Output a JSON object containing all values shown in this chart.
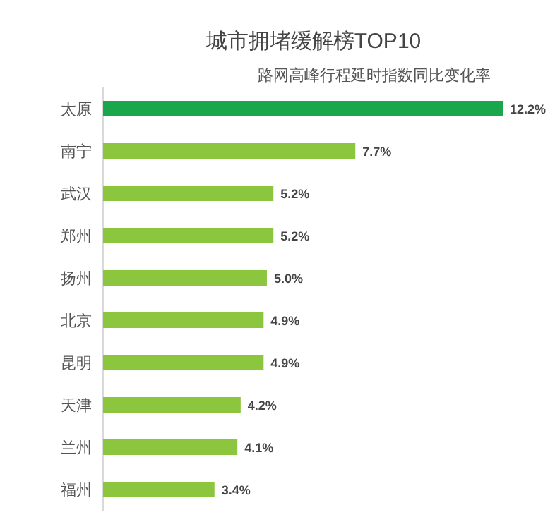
{
  "chart_data": {
    "type": "bar",
    "orientation": "horizontal",
    "title": "城市拥堵缓解榜TOP10",
    "subtitle": "路网高峰行程延时指数同比变化率",
    "categories": [
      "太原",
      "南宁",
      "武汉",
      "郑州",
      "扬州",
      "北京",
      "昆明",
      "天津",
      "兰州",
      "福州"
    ],
    "values": [
      12.2,
      7.7,
      5.2,
      5.2,
      5.0,
      4.9,
      4.9,
      4.2,
      4.1,
      3.4
    ],
    "value_labels": [
      "12.2%",
      "7.7%",
      "5.2%",
      "5.2%",
      "5.0%",
      "4.9%",
      "4.9%",
      "4.2%",
      "4.1%",
      "3.4%"
    ],
    "colors": [
      "#1aa64a",
      "#8cc63f",
      "#8cc63f",
      "#8cc63f",
      "#8cc63f",
      "#8cc63f",
      "#8cc63f",
      "#8cc63f",
      "#8cc63f",
      "#8cc63f"
    ]
  }
}
